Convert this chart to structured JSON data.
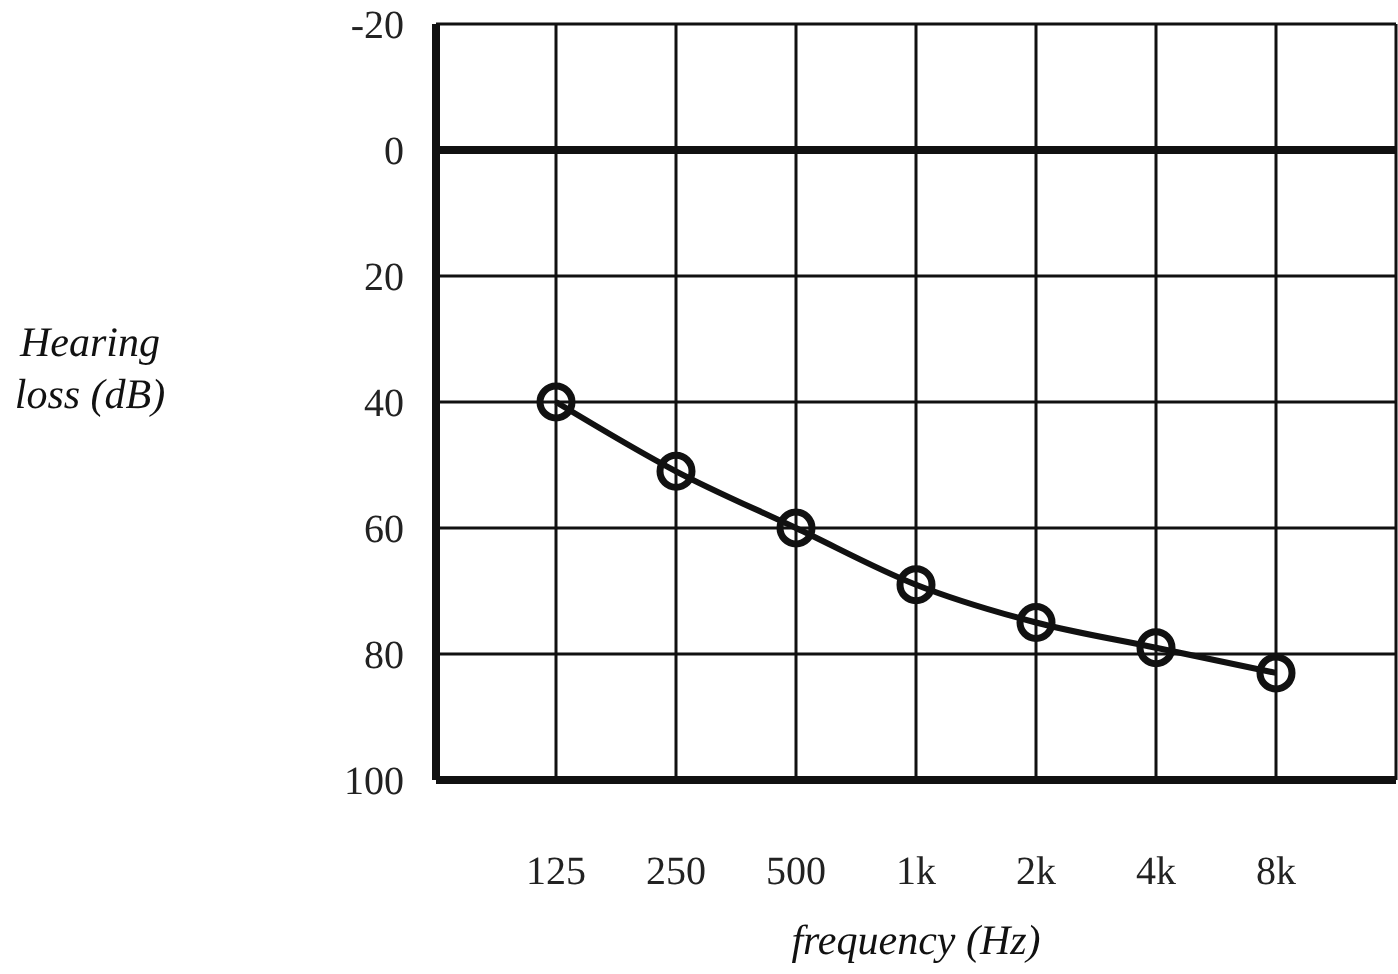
{
  "chart_data": {
    "type": "line",
    "xlabel": "frequency (Hz)",
    "ylabel": "Hearing loss (dB)",
    "categories": [
      "125",
      "250",
      "500",
      "1k",
      "2k",
      "4k",
      "8k"
    ],
    "series": [
      {
        "color": "#111111",
        "values": [
          40,
          51,
          60,
          69,
          75,
          79,
          83
        ]
      }
    ],
    "ylim": [
      100,
      -20
    ],
    "yticks": [
      -20,
      0,
      20,
      40,
      60,
      80,
      100
    ],
    "ref_lines": [
      {
        "axis": "y",
        "value": 0,
        "color": "#111111"
      }
    ],
    "grid": true,
    "marker": "circle",
    "line_style": "solid",
    "legend": false
  }
}
